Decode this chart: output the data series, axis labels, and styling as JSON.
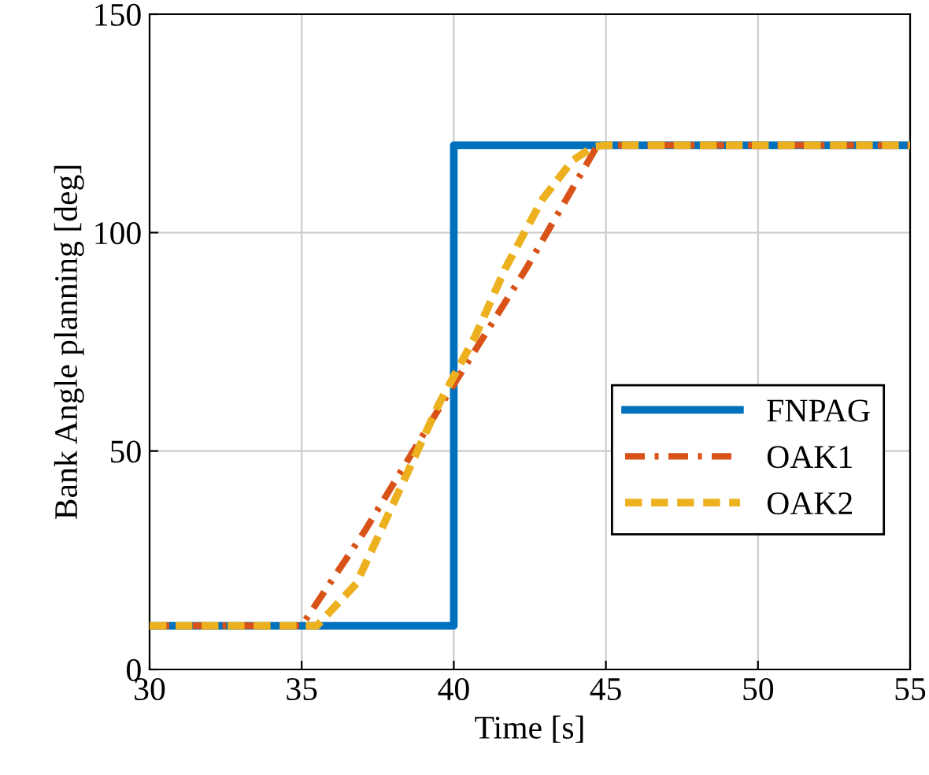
{
  "chart_data": {
    "type": "line",
    "xlabel": "Time [s]",
    "ylabel": "Bank Angle planning [deg]",
    "xlim": [
      30,
      55
    ],
    "xticks": [
      30,
      35,
      40,
      45,
      50,
      55
    ],
    "ylim": [
      0,
      150
    ],
    "yticks": [
      0,
      50,
      100,
      150
    ],
    "grid": true,
    "legend": "right",
    "series": [
      {
        "name": "FNPAG",
        "color": "#0072bd",
        "line_style": "solid",
        "x": [
          30,
          40,
          40,
          55
        ],
        "values": [
          10,
          10,
          120,
          120
        ]
      },
      {
        "name": "OAK1",
        "color": "#d95319",
        "line_style": "dashdot",
        "x": [
          30,
          35,
          37.1,
          39.8,
          42.4,
          44.7,
          45,
          55
        ],
        "values": [
          10,
          10,
          32,
          63,
          92,
          119.7,
          120,
          120
        ]
      },
      {
        "name": "OAK2",
        "color": "#edb120",
        "line_style": "dashed",
        "x": [
          30,
          35.5,
          36.8,
          38.0,
          39.5,
          40.7,
          41.7,
          42.9,
          43.9,
          44.6,
          45,
          55
        ],
        "values": [
          10,
          10,
          19.7,
          37.8,
          60.6,
          76.2,
          91.9,
          107.5,
          116.5,
          119.7,
          120,
          120
        ]
      }
    ]
  }
}
